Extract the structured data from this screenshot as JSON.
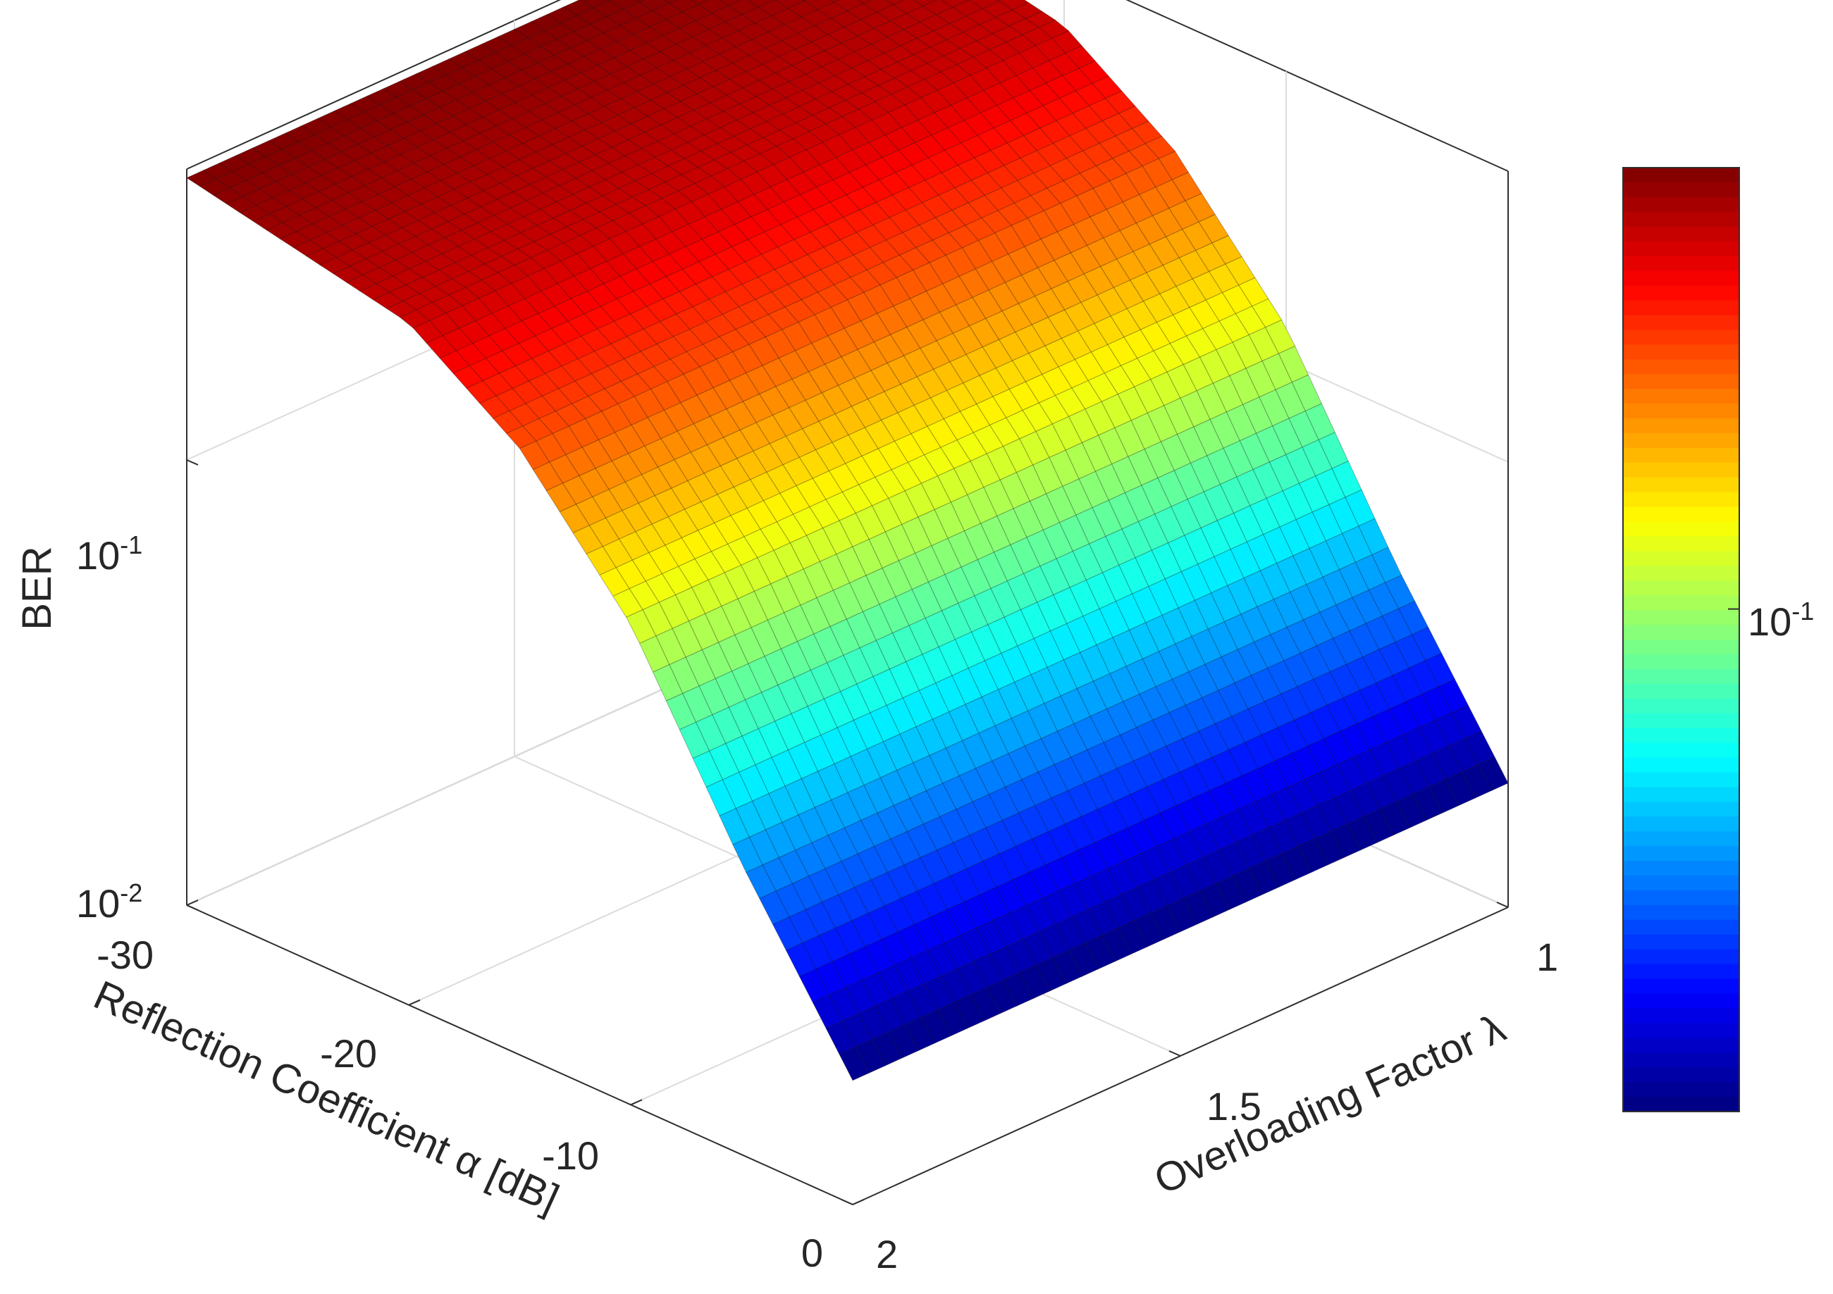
{
  "chart_data": {
    "type": "surface",
    "title": "",
    "xlabel": "Overloading Factor λ",
    "ylabel": "Reflection Coefficient α [dB]",
    "zlabel": "BER",
    "x_ticks": [
      "1",
      "1.5",
      "2"
    ],
    "y_ticks": [
      "-30",
      "-20",
      "-10",
      "0"
    ],
    "z_ticks": [
      {
        "base": "10",
        "exp": "-2"
      },
      {
        "base": "10",
        "exp": "-1"
      }
    ],
    "colorbar_ticks": [
      {
        "base": "10",
        "exp": "-1"
      }
    ],
    "xlim": [
      1,
      2
    ],
    "ylim": [
      -30,
      0
    ],
    "zlim": [
      0.01,
      0.45
    ],
    "zscale": "log",
    "colormap": "jet",
    "colorbar": "right",
    "grid": true,
    "series": [
      {
        "alpha_dB": -30,
        "lambda": [
          1,
          1.25,
          1.5,
          1.75,
          2
        ],
        "ber": [
          0.43,
          0.43,
          0.43,
          0.43,
          0.43
        ]
      },
      {
        "alpha_dB": -20,
        "lambda": [
          1,
          1.25,
          1.5,
          1.75,
          2
        ],
        "ber": [
          0.34,
          0.34,
          0.34,
          0.34,
          0.34
        ]
      },
      {
        "alpha_dB": -15,
        "lambda": [
          1,
          1.25,
          1.5,
          1.75,
          2
        ],
        "ber": [
          0.23,
          0.23,
          0.23,
          0.23,
          0.23
        ]
      },
      {
        "alpha_dB": -10,
        "lambda": [
          1,
          1.25,
          1.5,
          1.75,
          2
        ],
        "ber": [
          0.12,
          0.12,
          0.12,
          0.12,
          0.12
        ]
      },
      {
        "alpha_dB": -5,
        "lambda": [
          1,
          1.25,
          1.5,
          1.75,
          2
        ],
        "ber": [
          0.045,
          0.045,
          0.045,
          0.045,
          0.045
        ]
      },
      {
        "alpha_dB": 0,
        "lambda": [
          1,
          1.25,
          1.5,
          1.75,
          2
        ],
        "ber": [
          0.019,
          0.019,
          0.019,
          0.019,
          0.019
        ]
      }
    ]
  }
}
